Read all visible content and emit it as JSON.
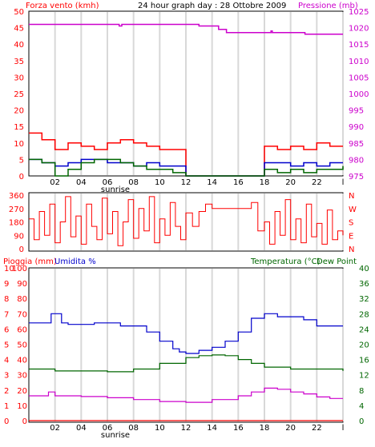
{
  "colors": {
    "wind": "#ff0000",
    "gust": "#cc0000",
    "pressure": "#cc00cc",
    "humidity": "#0000cc",
    "temperature": "#006600",
    "dewpoint": "#cc00cc",
    "rain": "#ff0000",
    "grid": "#d8d8d8",
    "frame": "#000000"
  },
  "chart_data": [
    {
      "type": "line",
      "title": "24 hour graph day : 28 Ottobre 2009",
      "left_axis_label": "Forza vento (kmh)",
      "right_axis_label": "Pressione (mb)",
      "x_ticks": [
        "02",
        "04",
        "06",
        "08",
        "10",
        "12",
        "14",
        "16",
        "18",
        "20",
        "22"
      ],
      "x_end_tick": "l",
      "sunrise_label": "sunrise",
      "left_ticks": [
        "0",
        "5",
        "10",
        "15",
        "20",
        "25",
        "30",
        "35",
        "40",
        "45",
        "50"
      ],
      "right_ticks": [
        "975",
        "980",
        "985",
        "990",
        "995",
        "1000",
        "1005",
        "1010",
        "1015",
        "1020",
        "1025"
      ],
      "ylim_left": [
        0,
        50
      ],
      "ylim_right": [
        975,
        1025
      ],
      "grid": "vertical",
      "series": [
        {
          "name": "Pressione",
          "axis": "right",
          "x": [
            0,
            6.9,
            6.9,
            7.1,
            7.1,
            13,
            13,
            14.5,
            14.5,
            15.1,
            15.1,
            18.5,
            18.5,
            18.6,
            18.6,
            21.1,
            21.1,
            24
          ],
          "values": [
            1021,
            1021,
            1020.5,
            1020.5,
            1021,
            1021,
            1020.5,
            1020.5,
            1019.5,
            1019.5,
            1018.5,
            1018.5,
            1019,
            1019,
            1018.5,
            1018.5,
            1018,
            1018
          ]
        },
        {
          "axis": "left",
          "x": [
            0,
            1,
            2,
            3,
            4,
            5,
            6,
            7,
            8,
            9,
            10,
            11,
            12,
            13,
            14,
            15,
            16,
            17,
            18,
            19,
            20,
            21,
            22,
            23,
            24
          ],
          "values": [
            13,
            11,
            8,
            10,
            9,
            8,
            10,
            11,
            10,
            9,
            8,
            8,
            0,
            0,
            0,
            0,
            0,
            0,
            9,
            8,
            9,
            8,
            10,
            9,
            9
          ]
        },
        {
          "axis": "left",
          "x": [
            0,
            1,
            2,
            3,
            4,
            5,
            6,
            7,
            8,
            9,
            10,
            11,
            12,
            13,
            14,
            15,
            16,
            17,
            18,
            19,
            20,
            21,
            22,
            23,
            24
          ],
          "values": [
            5,
            4,
            3,
            4,
            5,
            5,
            4,
            4,
            3,
            4,
            3,
            3,
            0,
            0,
            0,
            0,
            0,
            0,
            4,
            4,
            3,
            4,
            3,
            4,
            4
          ]
        },
        {
          "axis": "left",
          "x": [
            0,
            1,
            2,
            3,
            4,
            5,
            6,
            7,
            8,
            9,
            10,
            11,
            12,
            13,
            14,
            15,
            16,
            17,
            18,
            19,
            20,
            21,
            22,
            23,
            24
          ],
          "values": [
            5,
            4,
            0,
            2,
            4,
            5,
            5,
            4,
            3,
            2,
            2,
            1,
            0,
            0,
            0,
            0,
            0,
            0,
            2,
            1,
            2,
            1,
            2,
            2,
            3
          ]
        }
      ]
    },
    {
      "type": "line",
      "left_ticks": [
        "0",
        "90",
        "180",
        "270",
        "360"
      ],
      "right_labels": [
        "N",
        "W",
        "S",
        "E",
        "N"
      ],
      "ylim": [
        0,
        360
      ],
      "x": [
        0,
        0.4,
        0.8,
        1.2,
        1.6,
        2,
        2.4,
        2.8,
        3.2,
        3.6,
        4,
        4.4,
        4.8,
        5.2,
        5.6,
        6,
        6.4,
        6.8,
        7.2,
        7.6,
        8,
        8.4,
        8.8,
        9.2,
        9.6,
        10,
        10.4,
        10.8,
        11.2,
        11.6,
        12,
        12.5,
        13,
        13.5,
        14,
        15,
        16,
        17,
        17.5,
        18,
        18.4,
        18.8,
        19.2,
        19.6,
        20,
        20.4,
        20.8,
        21.2,
        21.6,
        22,
        22.4,
        22.8,
        23.2,
        23.6,
        24
      ],
      "values": [
        200,
        60,
        250,
        90,
        300,
        40,
        180,
        350,
        80,
        220,
        30,
        300,
        150,
        60,
        340,
        100,
        250,
        20,
        180,
        330,
        70,
        270,
        120,
        350,
        40,
        200,
        90,
        310,
        150,
        60,
        240,
        150,
        250,
        300,
        270,
        270,
        270,
        310,
        120,
        180,
        30,
        250,
        90,
        330,
        60,
        200,
        40,
        300,
        80,
        170,
        30,
        260,
        60,
        120,
        90
      ]
    },
    {
      "type": "line",
      "left_axis_label": "Pioggia (mm)",
      "left_axis_label_2": "Umidita %",
      "right_axis_label": "Temperatura (°C)",
      "right_axis_label_2": "Dew Point",
      "x_ticks": [
        "02",
        "04",
        "06",
        "08",
        "10",
        "12",
        "14",
        "16",
        "18",
        "20",
        "22"
      ],
      "x_end_tick": "l",
      "sunrise_label": "sunrise",
      "rain_ticks": [
        "0",
        "1",
        "2",
        "3",
        "4",
        "5",
        "6",
        "7",
        "8",
        "9",
        "10"
      ],
      "humidity_ticks": [
        "0",
        "10",
        "20",
        "30",
        "40",
        "50",
        "60",
        "70",
        "80",
        "90",
        "100"
      ],
      "right_ticks": [
        "0",
        "4",
        "8",
        "12",
        "16",
        "20",
        "24",
        "28",
        "32",
        "36",
        "40"
      ],
      "ylim_left": [
        0,
        100
      ],
      "ylim_right": [
        0,
        40
      ],
      "series": [
        {
          "name": "Umidita %",
          "axis": "left",
          "x": [
            0,
            1,
            1.7,
            2.5,
            3,
            4,
            5,
            6,
            7,
            8,
            9,
            10,
            11,
            11.5,
            12,
            13,
            14,
            15,
            16,
            17,
            18,
            19,
            20,
            21,
            22,
            23,
            24
          ],
          "values": [
            64,
            64,
            70,
            64,
            63,
            63,
            64,
            64,
            62,
            62,
            58,
            52,
            47,
            45,
            44,
            46,
            48,
            52,
            58,
            67,
            70,
            68,
            68,
            66,
            62,
            62,
            62
          ]
        },
        {
          "name": "Temperatura (°C)",
          "axis": "right",
          "x": [
            0,
            2,
            4,
            6,
            8,
            10,
            12,
            13,
            14,
            15,
            16,
            17,
            18,
            20,
            22,
            24
          ],
          "values": [
            13.5,
            13,
            13,
            12.8,
            13.5,
            15,
            16.5,
            17,
            17.2,
            17,
            16,
            15,
            14,
            13.5,
            13.5,
            13
          ]
        },
        {
          "name": "Dew Point",
          "axis": "right",
          "x": [
            0,
            1,
            1.5,
            2,
            3,
            4,
            6,
            8,
            10,
            12,
            14,
            16,
            17,
            18,
            19,
            20,
            21,
            22,
            23,
            24
          ],
          "values": [
            6.5,
            6.5,
            7.5,
            6.5,
            6.5,
            6.3,
            6,
            5.5,
            5,
            4.8,
            5.5,
            6.5,
            7.5,
            8.5,
            8.2,
            7.5,
            7,
            6.2,
            5.8,
            5.8
          ]
        },
        {
          "name": "Pioggia (mm)",
          "axis": "rain",
          "x": [
            0,
            24
          ],
          "values": [
            0,
            0
          ]
        }
      ]
    }
  ]
}
